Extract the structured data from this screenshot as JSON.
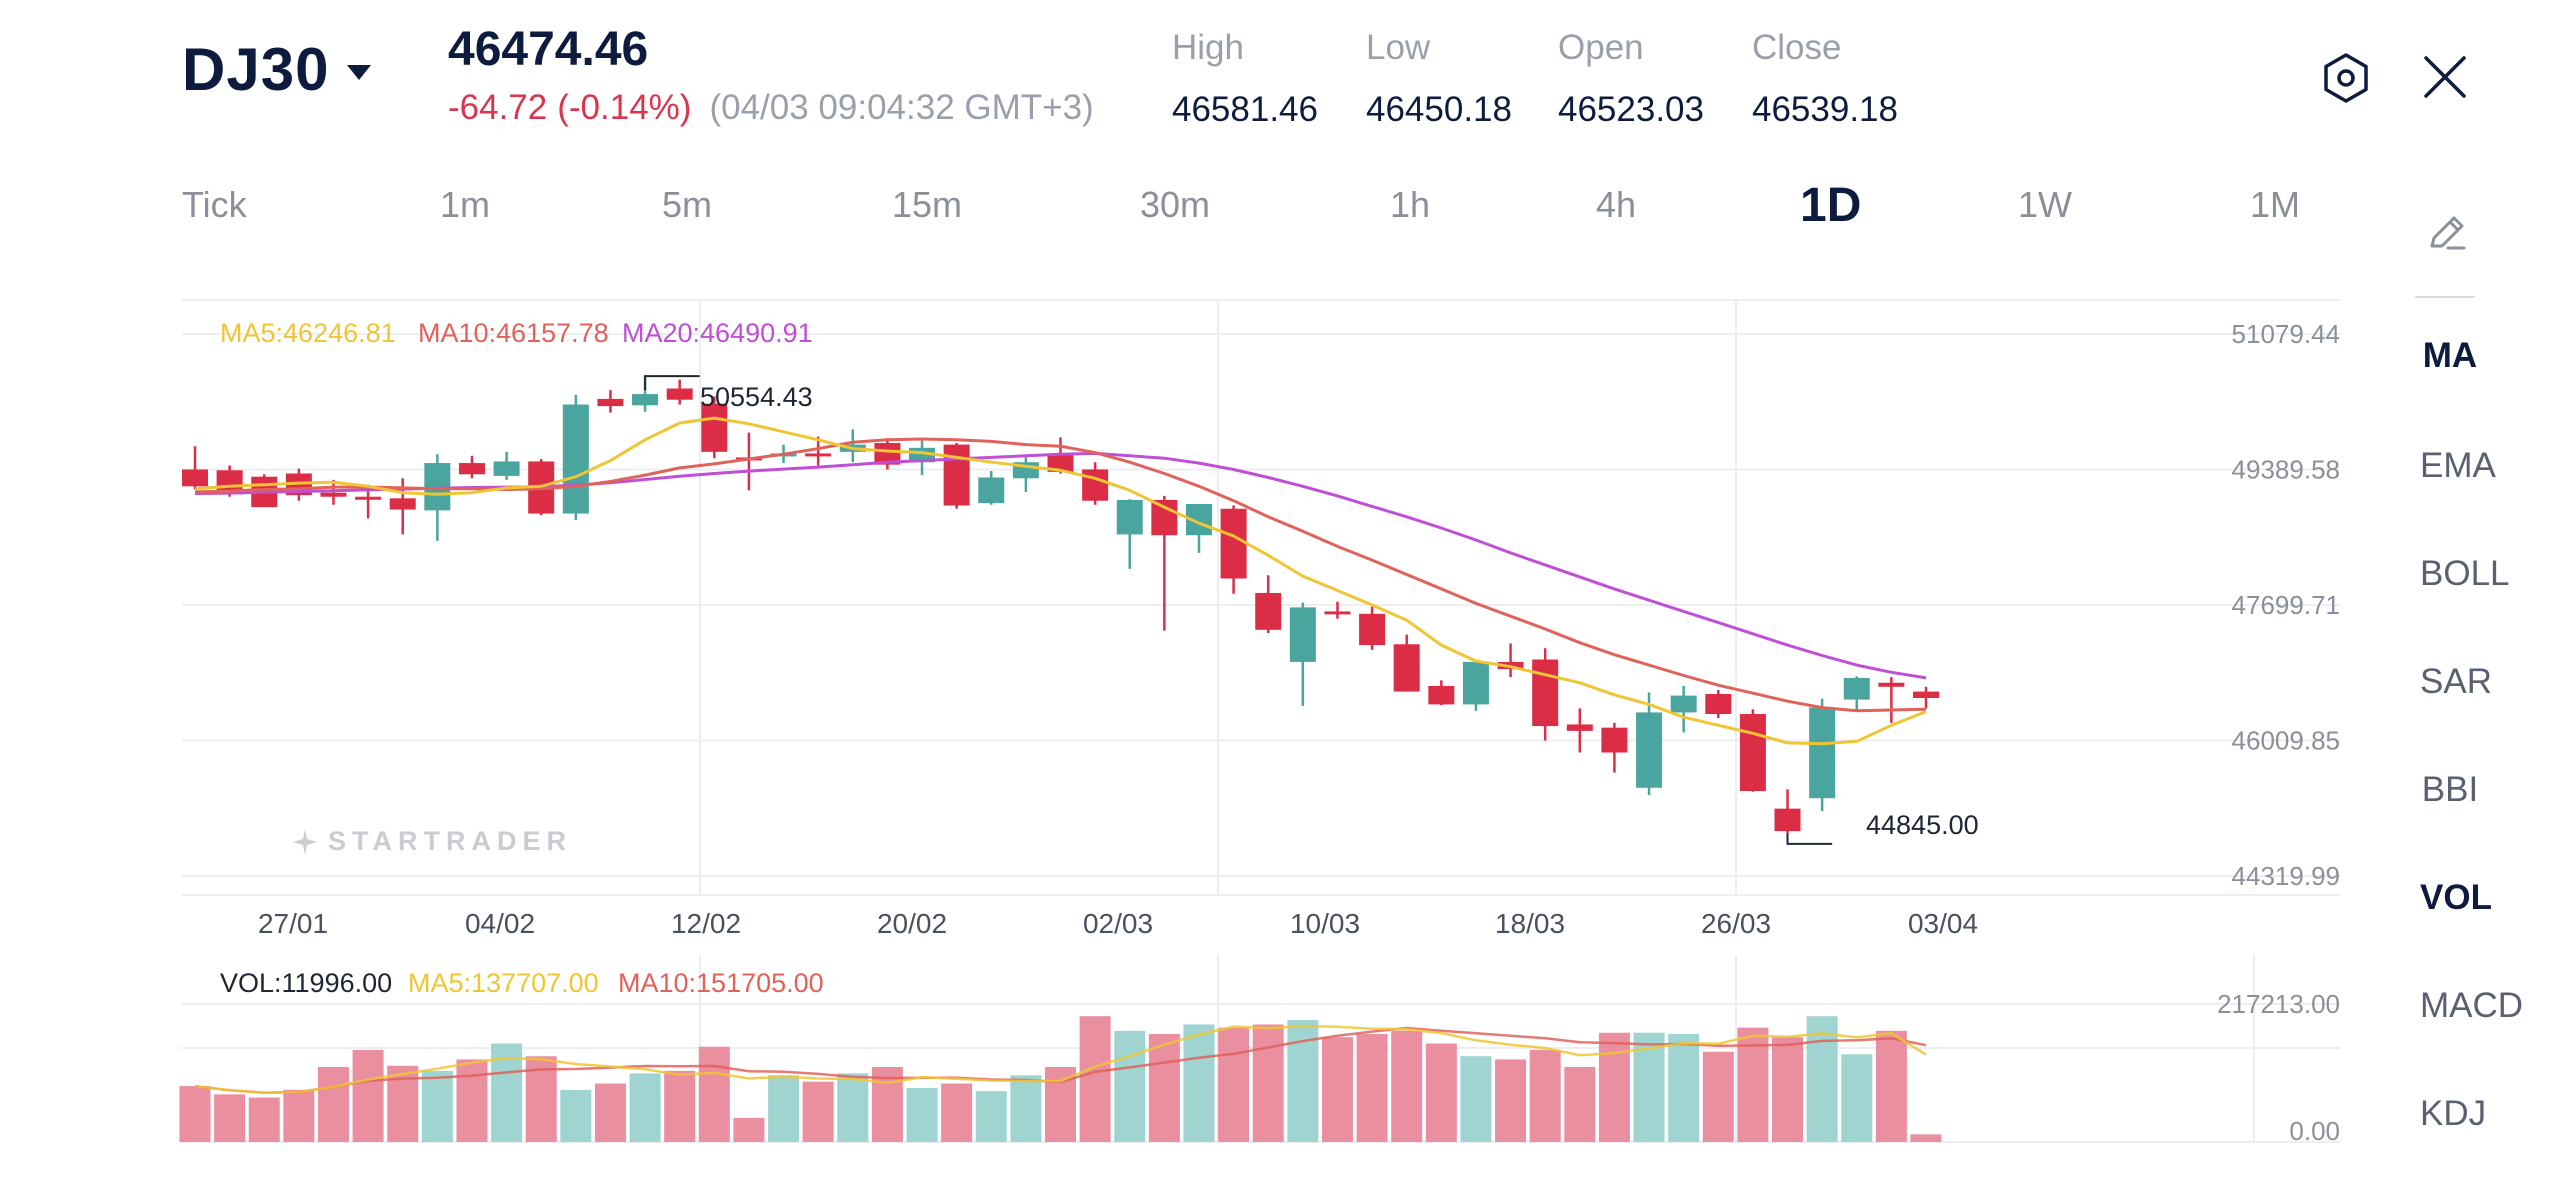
{
  "header": {
    "symbol": "DJ30",
    "price": "46474.46",
    "change": "-64.72",
    "change_pct": "(-0.14%)",
    "timestamp": "(04/03 09:04:32 GMT+3)",
    "high_label": "High",
    "high": "46581.46",
    "low_label": "Low",
    "low": "46450.18",
    "open_label": "Open",
    "open": "46523.03",
    "close_label": "Close",
    "close": "46539.18"
  },
  "icons": {
    "settings": "settings-hexagon-icon",
    "close": "close-icon",
    "draw": "pencil-draw-icon",
    "caret": "caret-down-icon",
    "logo": "star-logo-icon"
  },
  "timeframes": [
    "Tick",
    "1m",
    "5m",
    "15m",
    "30m",
    "1h",
    "4h",
    "1D",
    "1W",
    "1M"
  ],
  "active_timeframe": "1D",
  "indicators": [
    {
      "label": "MA",
      "active": true
    },
    {
      "label": "EMA",
      "active": false
    },
    {
      "label": "BOLL",
      "active": false
    },
    {
      "label": "SAR",
      "active": false
    },
    {
      "label": "BBI",
      "active": false
    },
    {
      "label": "VOL",
      "active": true
    },
    {
      "label": "MACD",
      "active": false
    },
    {
      "label": "KDJ",
      "active": false
    }
  ],
  "ma_legend": {
    "ma5": "MA5:46246.81",
    "ma10": "MA10:46157.78",
    "ma20": "MA20:46490.91"
  },
  "vol_legend": {
    "vol": "VOL:11996.00",
    "ma5": "MA5:137707.00",
    "ma10": "MA10:151705.00"
  },
  "watermark": "STARTRADER",
  "colors": {
    "up": "#4aa59e",
    "down": "#dc2d47",
    "ma5": "#f0c534",
    "ma10": "#e0625a",
    "ma20": "#c04fd6",
    "vol_up": "#9fd4d0",
    "vol_down": "#ea8fa0"
  },
  "chart_data": {
    "type": "candlestick",
    "title": "DJ30 1D",
    "y_axis_labels": [
      "51079.44",
      "49389.58",
      "47699.71",
      "46009.85",
      "44319.99"
    ],
    "ylim": [
      44319.99,
      51079.44
    ],
    "x_axis_labels": [
      "27/01",
      "04/02",
      "12/02",
      "20/02",
      "02/03",
      "10/03",
      "18/03",
      "26/03",
      "03/04"
    ],
    "annotations": {
      "high": "50554.43",
      "low": "44845.00"
    },
    "candles": [
      {
        "o": 49390,
        "h": 49680,
        "l": 49140,
        "c": 49180
      },
      {
        "o": 49380,
        "h": 49440,
        "l": 49050,
        "c": 49080
      },
      {
        "o": 49300,
        "h": 49330,
        "l": 48950,
        "c": 48920
      },
      {
        "o": 49340,
        "h": 49400,
        "l": 49000,
        "c": 49070
      },
      {
        "o": 49100,
        "h": 49260,
        "l": 48950,
        "c": 49050
      },
      {
        "o": 49050,
        "h": 49200,
        "l": 48780,
        "c": 49020
      },
      {
        "o": 49030,
        "h": 49280,
        "l": 48580,
        "c": 48890
      },
      {
        "o": 48880,
        "h": 49580,
        "l": 48500,
        "c": 49470
      },
      {
        "o": 49470,
        "h": 49560,
        "l": 49280,
        "c": 49330
      },
      {
        "o": 49310,
        "h": 49610,
        "l": 49260,
        "c": 49490
      },
      {
        "o": 49490,
        "h": 49520,
        "l": 48820,
        "c": 48840
      },
      {
        "o": 48840,
        "h": 50320,
        "l": 48760,
        "c": 50200
      },
      {
        "o": 50270,
        "h": 50380,
        "l": 50100,
        "c": 50180
      },
      {
        "o": 50190,
        "h": 50554,
        "l": 50110,
        "c": 50330
      },
      {
        "o": 50400,
        "h": 50510,
        "l": 50200,
        "c": 50260
      },
      {
        "o": 50210,
        "h": 50300,
        "l": 49530,
        "c": 49610
      },
      {
        "o": 49540,
        "h": 49850,
        "l": 49130,
        "c": 49520
      },
      {
        "o": 49570,
        "h": 49700,
        "l": 49470,
        "c": 49590
      },
      {
        "o": 49590,
        "h": 49800,
        "l": 49440,
        "c": 49580
      },
      {
        "o": 49610,
        "h": 49890,
        "l": 49480,
        "c": 49700
      },
      {
        "o": 49720,
        "h": 49780,
        "l": 49390,
        "c": 49450
      },
      {
        "o": 49480,
        "h": 49750,
        "l": 49320,
        "c": 49660
      },
      {
        "o": 49700,
        "h": 49720,
        "l": 48900,
        "c": 48940
      },
      {
        "o": 48970,
        "h": 49370,
        "l": 48950,
        "c": 49290
      },
      {
        "o": 49280,
        "h": 49560,
        "l": 49110,
        "c": 49480
      },
      {
        "o": 49590,
        "h": 49790,
        "l": 49340,
        "c": 49360
      },
      {
        "o": 49390,
        "h": 49480,
        "l": 48950,
        "c": 49000
      },
      {
        "o": 48580,
        "h": 49020,
        "l": 48150,
        "c": 49010
      },
      {
        "o": 49010,
        "h": 49060,
        "l": 47380,
        "c": 48570
      },
      {
        "o": 48570,
        "h": 48960,
        "l": 48350,
        "c": 48960
      },
      {
        "o": 48900,
        "h": 48940,
        "l": 47840,
        "c": 48030
      },
      {
        "o": 47850,
        "h": 48070,
        "l": 47350,
        "c": 47390
      },
      {
        "o": 46990,
        "h": 47730,
        "l": 46440,
        "c": 47670
      },
      {
        "o": 47620,
        "h": 47740,
        "l": 47530,
        "c": 47610
      },
      {
        "o": 47590,
        "h": 47680,
        "l": 47140,
        "c": 47200
      },
      {
        "o": 47210,
        "h": 47330,
        "l": 46620,
        "c": 46620
      },
      {
        "o": 46690,
        "h": 46760,
        "l": 46450,
        "c": 46460
      },
      {
        "o": 46460,
        "h": 46990,
        "l": 46380,
        "c": 46990
      },
      {
        "o": 46990,
        "h": 47220,
        "l": 46800,
        "c": 46900
      },
      {
        "o": 47020,
        "h": 47160,
        "l": 46010,
        "c": 46190
      },
      {
        "o": 46210,
        "h": 46410,
        "l": 45860,
        "c": 46130
      },
      {
        "o": 46170,
        "h": 46230,
        "l": 45610,
        "c": 45860
      },
      {
        "o": 45420,
        "h": 46610,
        "l": 45330,
        "c": 46360
      },
      {
        "o": 46360,
        "h": 46690,
        "l": 46110,
        "c": 46570
      },
      {
        "o": 46590,
        "h": 46640,
        "l": 46290,
        "c": 46340
      },
      {
        "o": 46340,
        "h": 46400,
        "l": 45370,
        "c": 45380
      },
      {
        "o": 45160,
        "h": 45400,
        "l": 44845,
        "c": 44880
      },
      {
        "o": 45290,
        "h": 46530,
        "l": 45130,
        "c": 46420
      },
      {
        "o": 46520,
        "h": 46810,
        "l": 46390,
        "c": 46790
      },
      {
        "o": 46730,
        "h": 46800,
        "l": 46230,
        "c": 46680
      },
      {
        "o": 46620,
        "h": 46680,
        "l": 46410,
        "c": 46540
      }
    ],
    "ma5": [
      49150,
      49180,
      49200,
      49220,
      49230,
      49180,
      49100,
      49080,
      49100,
      49160,
      49180,
      49300,
      49500,
      49760,
      49970,
      50030,
      49960,
      49860,
      49760,
      49650,
      49620,
      49600,
      49540,
      49480,
      49430,
      49380,
      49280,
      49130,
      48920,
      48720,
      48560,
      48320,
      48060,
      47880,
      47700,
      47510,
      47200,
      47000,
      46930,
      46830,
      46730,
      46580,
      46460,
      46300,
      46200,
      46100,
      45980,
      45970,
      46000,
      46200,
      46370
    ],
    "ma10": [
      49110,
      49120,
      49140,
      49150,
      49170,
      49170,
      49160,
      49150,
      49150,
      49140,
      49150,
      49180,
      49240,
      49320,
      49410,
      49460,
      49520,
      49580,
      49650,
      49730,
      49760,
      49770,
      49760,
      49740,
      49700,
      49680,
      49600,
      49480,
      49340,
      49180,
      49000,
      48800,
      48620,
      48430,
      48260,
      48080,
      47900,
      47720,
      47560,
      47400,
      47230,
      47080,
      46950,
      46820,
      46700,
      46600,
      46500,
      46420,
      46380,
      46390,
      46400
    ],
    "ma20": [
      49090,
      49095,
      49105,
      49115,
      49125,
      49135,
      49145,
      49155,
      49165,
      49170,
      49175,
      49195,
      49225,
      49265,
      49305,
      49340,
      49370,
      49395,
      49420,
      49450,
      49480,
      49500,
      49520,
      49540,
      49560,
      49580,
      49590,
      49560,
      49530,
      49470,
      49390,
      49290,
      49180,
      49060,
      48930,
      48800,
      48660,
      48510,
      48350,
      48200,
      48050,
      47900,
      47760,
      47620,
      47480,
      47340,
      47200,
      47070,
      46950,
      46860,
      46790
    ],
    "volume": {
      "ylim": [
        0,
        217213
      ],
      "axis_labels": [
        "217213.00",
        "0.00"
      ],
      "values": [
        88000,
        75000,
        70000,
        82000,
        118000,
        145000,
        120000,
        112000,
        130000,
        155000,
        135000,
        82000,
        92000,
        108000,
        112000,
        150000,
        38000,
        105000,
        95000,
        108000,
        118000,
        85000,
        92000,
        80000,
        105000,
        118000,
        198000,
        175000,
        170000,
        185000,
        180000,
        185000,
        192000,
        165000,
        170000,
        175000,
        155000,
        135000,
        130000,
        145000,
        118000,
        172000,
        172000,
        170000,
        142000,
        180000,
        165000,
        198000,
        138000,
        175000,
        12000
      ]
    }
  }
}
